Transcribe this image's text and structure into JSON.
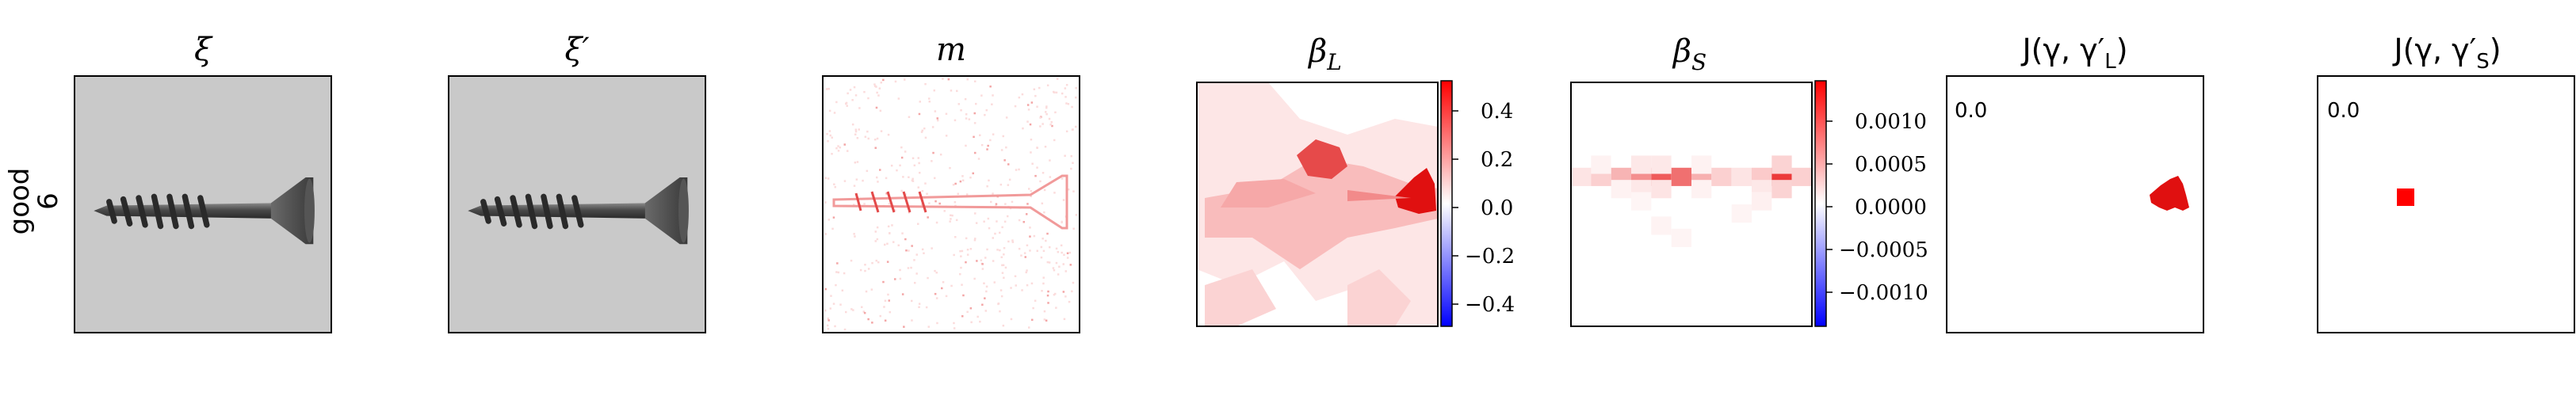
{
  "row_label": {
    "line1": "good",
    "line2": "6"
  },
  "panels": [
    {
      "id": "xi",
      "title": "ξ"
    },
    {
      "id": "xi-prime",
      "title": "ξ′"
    },
    {
      "id": "m",
      "title": "m"
    },
    {
      "id": "beta-l",
      "title": "β",
      "title_sub": "L"
    },
    {
      "id": "beta-s",
      "title": "β",
      "title_sub": "S"
    },
    {
      "id": "j-l",
      "title": "J(γ, γ′",
      "title_sub": "L",
      "title_end": ")",
      "inset_value": "0.0"
    },
    {
      "id": "j-s",
      "title": "J(γ, γ′",
      "title_sub": "S",
      "title_end": ")",
      "inset_value": "0.0"
    }
  ],
  "colorbars": {
    "beta_l": {
      "ticks": [
        "0.4",
        "0.2",
        "0.0",
        "−0.2",
        "−0.4"
      ],
      "range": [
        -0.5,
        0.5
      ],
      "colormap": "bwr"
    },
    "beta_s": {
      "ticks": [
        "0.0010",
        "0.0005",
        "0.0000",
        "−0.0005",
        "−0.0010"
      ],
      "range": [
        -0.0014,
        0.0014
      ],
      "colormap": "bwr"
    }
  },
  "colors": {
    "positive": "#ff0000",
    "negative": "#0000ff",
    "neutral": "#ffffff"
  }
}
